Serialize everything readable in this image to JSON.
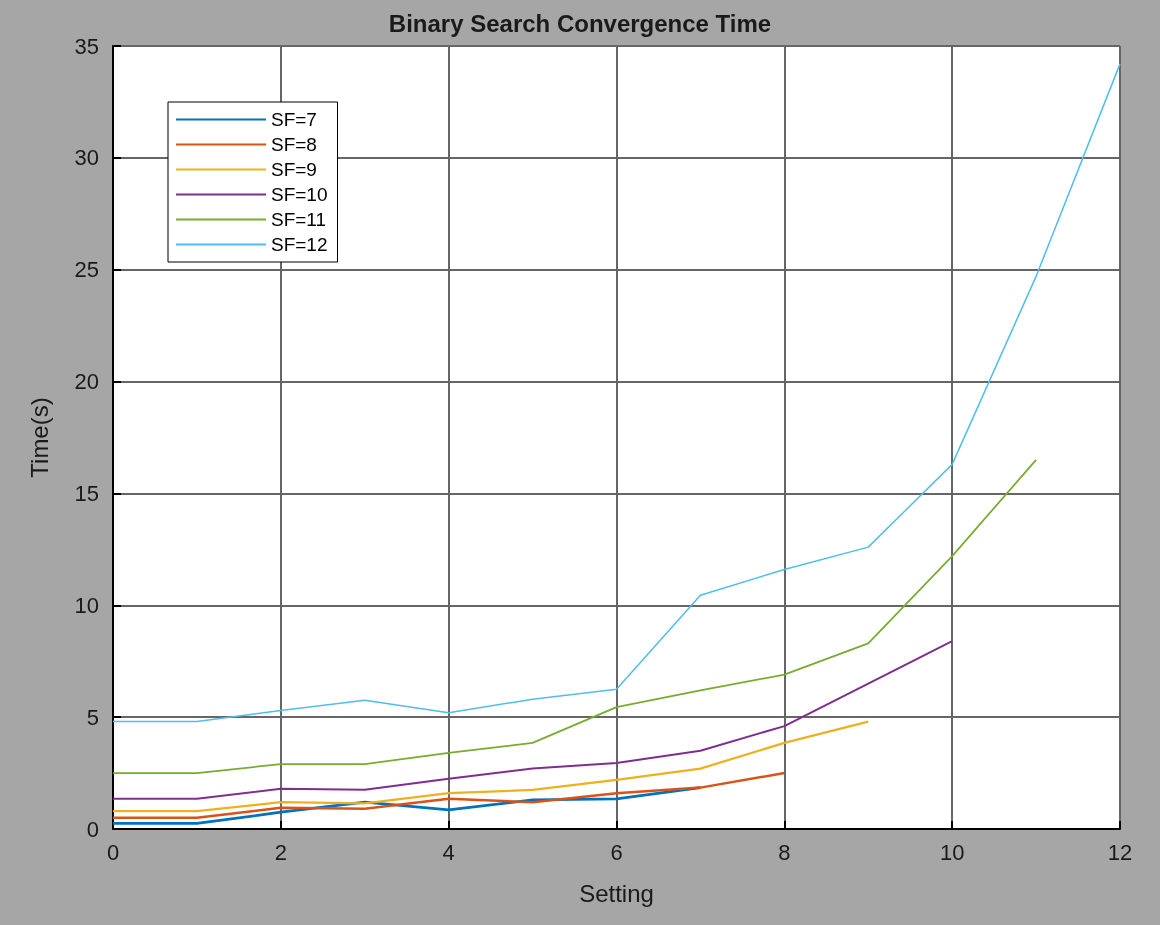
{
  "chart_data": {
    "type": "line",
    "title": "Binary Search Convergence Time",
    "xlabel": "Setting",
    "ylabel": "Time(s)",
    "xlim": [
      0,
      12
    ],
    "xticks": [
      0,
      2,
      4,
      6,
      8,
      10,
      12
    ],
    "ylim": [
      0,
      35
    ],
    "yticks": [
      0,
      5,
      10,
      15,
      20,
      25,
      30,
      35
    ],
    "grid": true,
    "legend": "top left",
    "marker": "none",
    "line_style": "solid",
    "series": [
      {
        "name": "SF=7",
        "color": "#0072bd",
        "x": [
          0,
          1,
          2,
          3,
          4,
          5,
          6,
          7
        ],
        "values": [
          0.25,
          0.25,
          0.75,
          1.2,
          0.85,
          1.3,
          1.35,
          1.85
        ]
      },
      {
        "name": "SF=8",
        "color": "#d95319",
        "x": [
          0,
          1,
          2,
          3,
          4,
          5,
          6,
          7,
          8
        ],
        "values": [
          0.5,
          0.5,
          0.95,
          0.9,
          1.35,
          1.2,
          1.6,
          1.85,
          2.5
        ]
      },
      {
        "name": "SF=9",
        "color": "#edb120",
        "x": [
          0,
          1,
          2,
          3,
          4,
          5,
          6,
          7,
          8,
          9
        ],
        "values": [
          0.8,
          0.8,
          1.2,
          1.15,
          1.6,
          1.75,
          2.2,
          2.7,
          3.85,
          4.8
        ]
      },
      {
        "name": "SF=10",
        "color": "#7e2f8e",
        "x": [
          0,
          1,
          2,
          3,
          4,
          5,
          6,
          7,
          8,
          9,
          10
        ],
        "values": [
          1.35,
          1.35,
          1.8,
          1.75,
          2.25,
          2.7,
          2.95,
          3.5,
          4.6,
          6.5,
          8.4
        ]
      },
      {
        "name": "SF=11",
        "color": "#77ac30",
        "x": [
          0,
          1,
          2,
          3,
          4,
          5,
          6,
          7,
          8,
          9,
          10,
          11
        ],
        "values": [
          2.5,
          2.5,
          2.9,
          2.9,
          3.4,
          3.85,
          5.45,
          6.2,
          6.9,
          8.3,
          12.2,
          16.5
        ]
      },
      {
        "name": "SF=12",
        "color": "#4dbeee",
        "x": [
          0,
          1,
          2,
          3,
          4,
          5,
          6,
          7,
          8,
          9,
          10,
          11,
          12
        ],
        "values": [
          4.8,
          4.8,
          5.3,
          5.75,
          5.2,
          5.8,
          6.25,
          10.45,
          11.6,
          12.6,
          16.3,
          24.7,
          34.2
        ]
      }
    ]
  }
}
